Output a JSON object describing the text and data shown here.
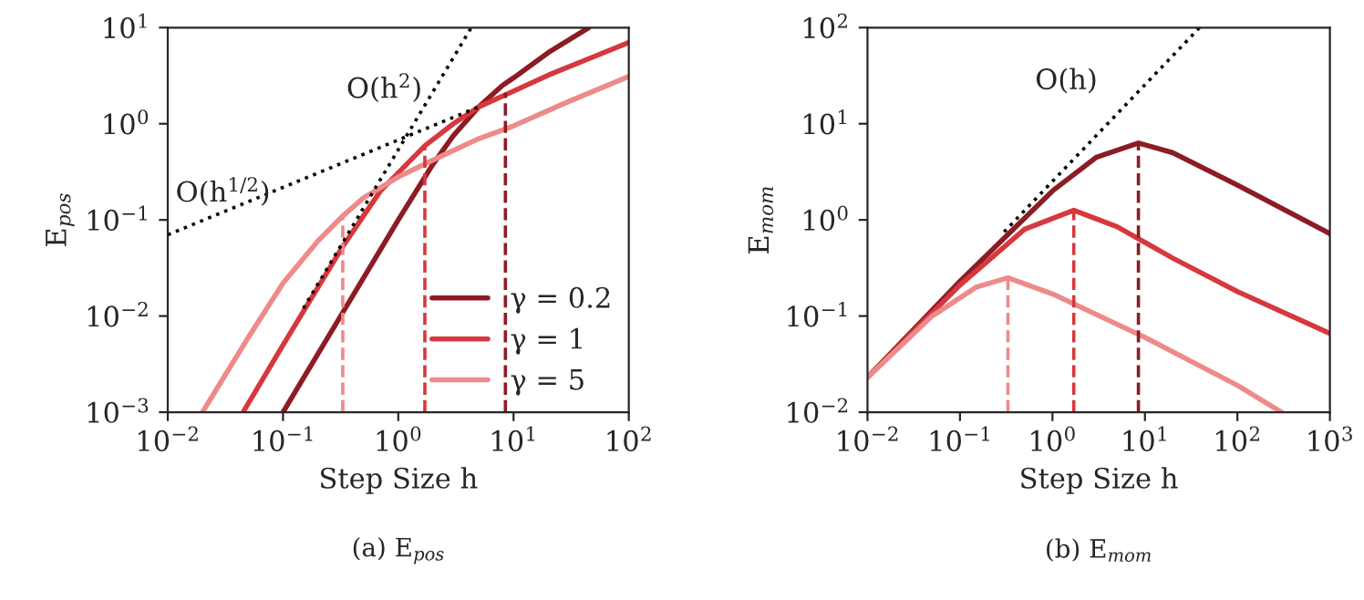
{
  "chart_data": [
    {
      "type": "line",
      "xlabel": "Step Size h",
      "ylabel": "E$_{pos}$",
      "log": "xy",
      "grid": false,
      "legend": "lower right",
      "xlim": [
        0.01,
        100
      ],
      "ylim": [
        0.001,
        10
      ],
      "xticks": [
        {
          "value": 0.01,
          "label": "10$^{−2}$"
        },
        {
          "value": 0.1,
          "label": "10$^{−1}$"
        },
        {
          "value": 1,
          "label": "10$^{0}$"
        },
        {
          "value": 10,
          "label": "10$^{1}$"
        },
        {
          "value": 100,
          "label": "10$^{2}$"
        }
      ],
      "yticks": [
        {
          "value": 0.001,
          "label": "10$^{−3}$"
        },
        {
          "value": 0.01,
          "label": "10$^{−2}$"
        },
        {
          "value": 0.1,
          "label": "10$^{−1}$"
        },
        {
          "value": 1,
          "label": "10$^{0}$"
        },
        {
          "value": 10,
          "label": "10$^{1}$"
        }
      ],
      "series": [
        {
          "name": "γ = 0.2",
          "color": "#8c1c24",
          "line_style": "solid",
          "x": [
            0.1,
            0.3,
            1,
            2,
            3,
            5,
            8,
            10,
            20,
            45
          ],
          "values": [
            0.001,
            0.009,
            0.1,
            0.38,
            0.75,
            1.5,
            2.5,
            3.0,
            5.5,
            10
          ]
        },
        {
          "name": "γ = 1",
          "color": "#d6383d",
          "line_style": "solid",
          "x": [
            0.045,
            0.1,
            0.33,
            0.7,
            1.7,
            3,
            5,
            8.5,
            20,
            50,
            100
          ],
          "values": [
            0.001,
            0.005,
            0.053,
            0.2,
            0.59,
            1.0,
            1.5,
            2.0,
            3.2,
            5,
            7
          ]
        },
        {
          "name": "γ = 5",
          "color": "#ee8a8a",
          "line_style": "solid",
          "x": [
            0.02,
            0.05,
            0.1,
            0.2,
            0.33,
            0.5,
            1,
            2,
            5,
            10,
            30,
            100
          ],
          "values": [
            0.001,
            0.006,
            0.022,
            0.06,
            0.11,
            0.17,
            0.28,
            0.42,
            0.7,
            0.95,
            1.7,
            3.1
          ]
        },
        {
          "color": "#8c1c24",
          "line_style": "dashed",
          "x": [
            8.5,
            8.5
          ],
          "values": [
            0.001,
            2.1
          ]
        },
        {
          "color": "#d6383d",
          "line_style": "dashed",
          "x": [
            1.7,
            1.7
          ],
          "values": [
            0.001,
            0.59
          ]
        },
        {
          "color": "#ee8a8a",
          "line_style": "dashed",
          "x": [
            0.33,
            0.33
          ],
          "values": [
            0.001,
            0.11
          ]
        },
        {
          "color": "#000000",
          "line_style": "dotted",
          "x": [
            0.15,
            4.3
          ],
          "values": [
            0.012,
            10
          ]
        },
        {
          "color": "#000000",
          "line_style": "dotted",
          "x": [
            0.01,
            5
          ],
          "values": [
            0.07,
            1.5
          ]
        }
      ],
      "annotations": [
        "O(h$^{2}$)",
        "O(h$^{1/2}$)",
        "(a) E$_{pos}$"
      ]
    },
    {
      "type": "line",
      "xlabel": "Step Size h",
      "ylabel": "E$_{mom}$",
      "log": "xy",
      "grid": false,
      "xlim": [
        0.01,
        1000
      ],
      "ylim": [
        0.01,
        100
      ],
      "xticks": [
        {
          "value": 0.01,
          "label": "10$^{−2}$"
        },
        {
          "value": 0.1,
          "label": "10$^{−1}$"
        },
        {
          "value": 1,
          "label": "10$^{0}$"
        },
        {
          "value": 10,
          "label": "10$^{1}$"
        },
        {
          "value": 100,
          "label": "10$^{2}$"
        },
        {
          "value": 1000,
          "label": "10$^{3}$"
        }
      ],
      "yticks": [
        {
          "value": 0.01,
          "label": "10$^{−2}$"
        },
        {
          "value": 0.1,
          "label": "10$^{−1}$"
        },
        {
          "value": 1,
          "label": "10$^{0}$"
        },
        {
          "value": 10,
          "label": "10$^{1}$"
        },
        {
          "value": 100,
          "label": "10$^{2}$"
        }
      ],
      "series": [
        {
          "color": "#8c1c24",
          "line_style": "solid",
          "x": [
            0.01,
            0.1,
            1,
            3,
            8.5,
            20,
            100,
            1000
          ],
          "values": [
            0.023,
            0.23,
            2.0,
            4.5,
            6.3,
            5,
            2.3,
            0.72
          ]
        },
        {
          "color": "#d6383d",
          "line_style": "solid",
          "x": [
            0.01,
            0.1,
            0.5,
            1.7,
            5,
            20,
            100,
            1000
          ],
          "values": [
            0.023,
            0.21,
            0.8,
            1.26,
            0.85,
            0.4,
            0.18,
            0.066
          ]
        },
        {
          "color": "#ee8a8a",
          "line_style": "solid",
          "x": [
            0.01,
            0.05,
            0.15,
            0.33,
            1,
            10,
            100,
            300
          ],
          "values": [
            0.023,
            0.1,
            0.2,
            0.25,
            0.17,
            0.06,
            0.019,
            0.01
          ]
        },
        {
          "color": "#8c1c24",
          "line_style": "dashed",
          "x": [
            8.5,
            8.5
          ],
          "values": [
            0.01,
            6.3
          ]
        },
        {
          "color": "#d6383d",
          "line_style": "dashed",
          "x": [
            1.7,
            1.7
          ],
          "values": [
            0.01,
            1.26
          ]
        },
        {
          "color": "#ee8a8a",
          "line_style": "dashed",
          "x": [
            0.33,
            0.33
          ],
          "values": [
            0.01,
            0.25
          ]
        },
        {
          "color": "#000000",
          "line_style": "dotted",
          "x": [
            0.3,
            39
          ],
          "values": [
            0.75,
            100
          ]
        }
      ],
      "annotations": [
        "O(h)",
        "(b) E$_{mom}$"
      ]
    }
  ]
}
